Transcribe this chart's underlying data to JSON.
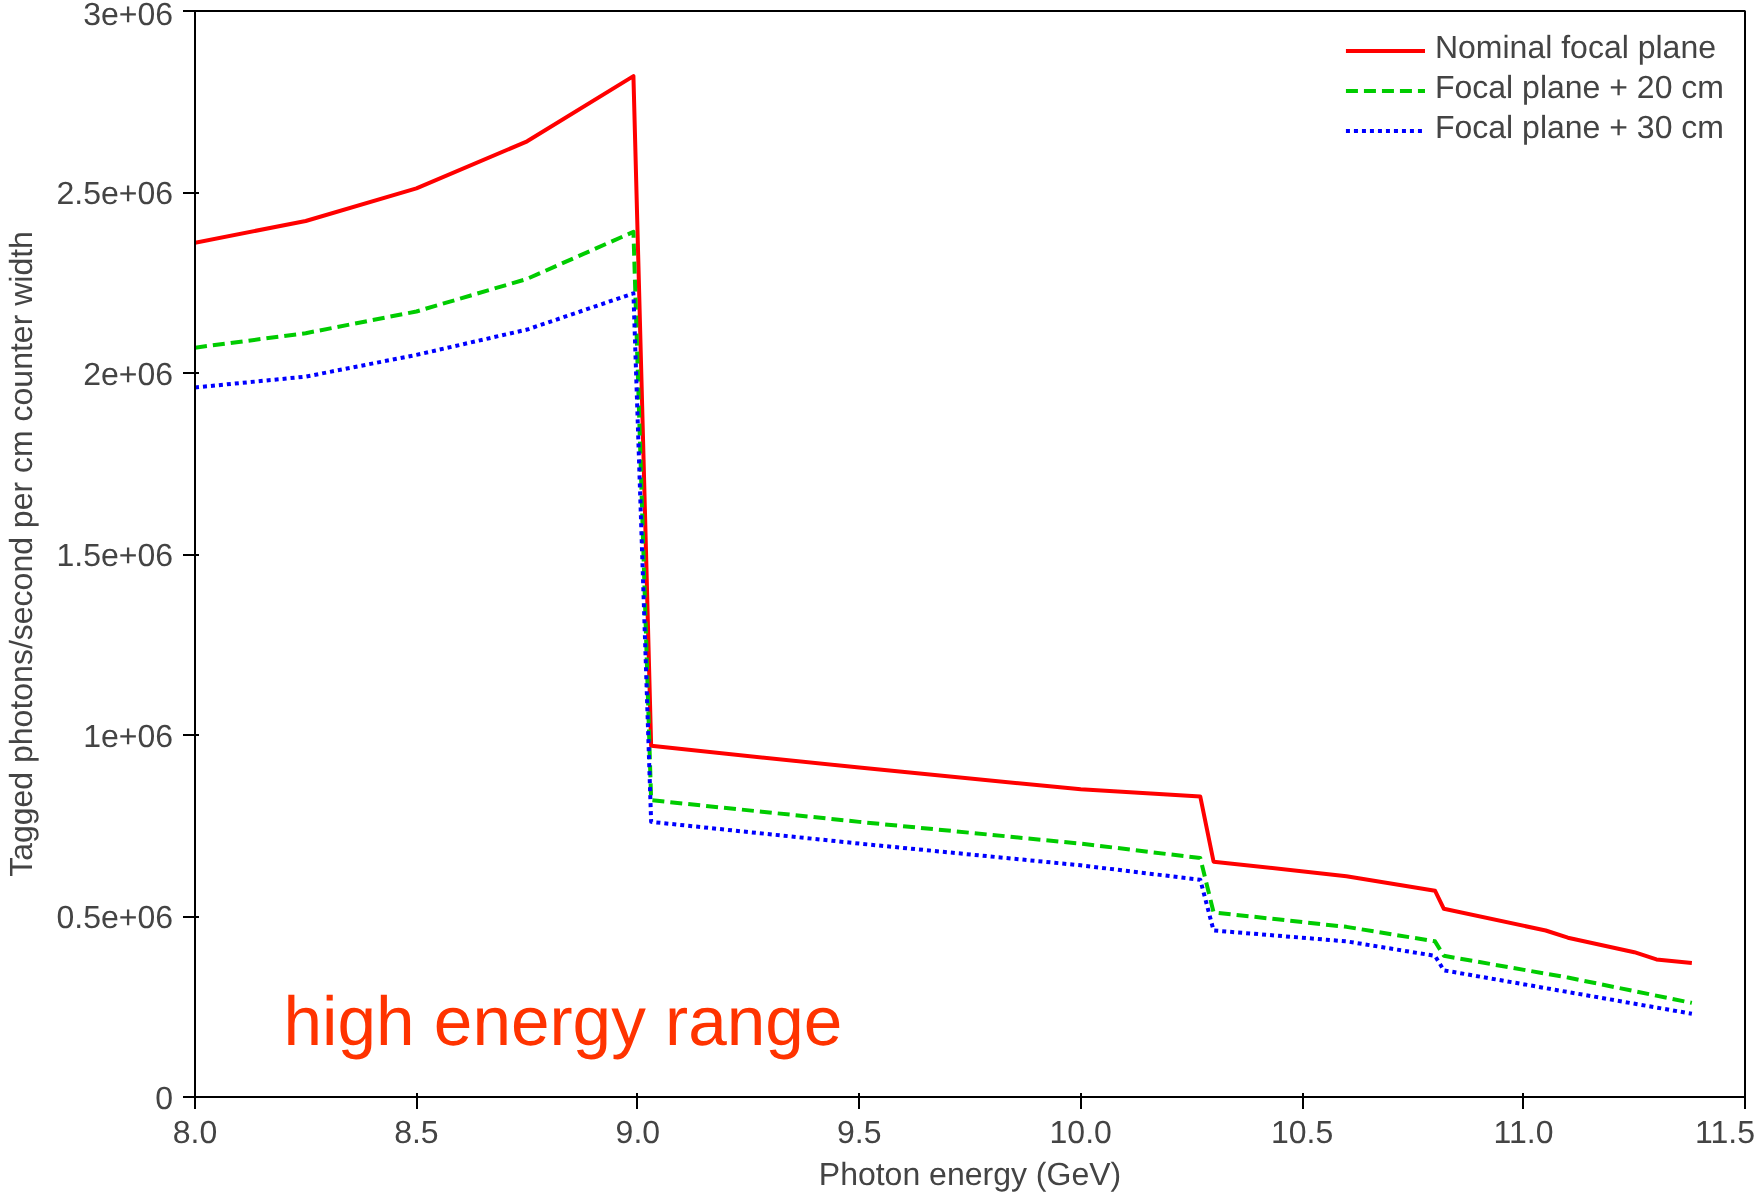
{
  "chart_data": {
    "type": "line",
    "xlabel": "Photon energy (GeV)",
    "ylabel": "Tagged photons/second per cm counter width",
    "annotations": [
      "high energy range"
    ],
    "xlim": [
      8.0,
      11.5
    ],
    "ylim": [
      0,
      3000000
    ],
    "xticks": [
      {
        "value": 8.0,
        "label": "8.0"
      },
      {
        "value": 8.5,
        "label": "8.5"
      },
      {
        "value": 9.0,
        "label": "9.0"
      },
      {
        "value": 9.5,
        "label": "9.5"
      },
      {
        "value": 10.0,
        "label": "10.0"
      },
      {
        "value": 10.5,
        "label": "10.5"
      },
      {
        "value": 11.0,
        "label": "11.0"
      },
      {
        "value": 11.5,
        "label": "11.5"
      }
    ],
    "yticks": [
      0,
      {
        "value": 500000,
        "label": "0.5e+06"
      },
      {
        "value": 1000000,
        "label": "1e+06"
      },
      {
        "value": 1500000,
        "label": "1.5e+06"
      },
      {
        "value": 2000000,
        "label": "2e+06"
      },
      {
        "value": 2500000,
        "label": "2.5e+06"
      },
      {
        "value": 3000000,
        "label": "3e+06"
      }
    ],
    "grid": false,
    "legend": "top right",
    "marker": "none",
    "series": [
      {
        "name": "Nominal focal plane",
        "color": "#ff0000",
        "line_style": "solid",
        "x": [
          8.0,
          8.25,
          8.5,
          8.75,
          8.99,
          9.03,
          9.5,
          10.0,
          10.27,
          10.3,
          10.6,
          10.8,
          10.82,
          11.05,
          11.1,
          11.25,
          11.3,
          11.38
        ],
        "values": [
          2360000,
          2420000,
          2510000,
          2640000,
          2820000,
          970000,
          910000,
          850000,
          830000,
          650000,
          610000,
          570000,
          520000,
          460000,
          440000,
          400000,
          380000,
          370000
        ]
      },
      {
        "name": "Focal plane + 20 cm",
        "color": "#00cc00",
        "line_style": "dashed",
        "x": [
          8.0,
          8.25,
          8.5,
          8.75,
          8.99,
          9.03,
          9.5,
          10.0,
          10.27,
          10.3,
          10.6,
          10.8,
          10.82,
          11.1,
          11.38
        ],
        "values": [
          2070000,
          2110000,
          2170000,
          2260000,
          2390000,
          820000,
          760000,
          700000,
          660000,
          510000,
          470000,
          430000,
          390000,
          330000,
          260000
        ]
      },
      {
        "name": "Focal plane + 30 cm",
        "color": "#0000ff",
        "line_style": "dotted",
        "x": [
          8.0,
          8.25,
          8.5,
          8.75,
          8.99,
          9.03,
          9.5,
          10.0,
          10.27,
          10.3,
          10.6,
          10.8,
          10.82,
          11.1,
          11.38
        ],
        "values": [
          1960000,
          1990000,
          2050000,
          2120000,
          2220000,
          760000,
          700000,
          640000,
          600000,
          460000,
          430000,
          390000,
          350000,
          290000,
          230000
        ]
      }
    ]
  }
}
